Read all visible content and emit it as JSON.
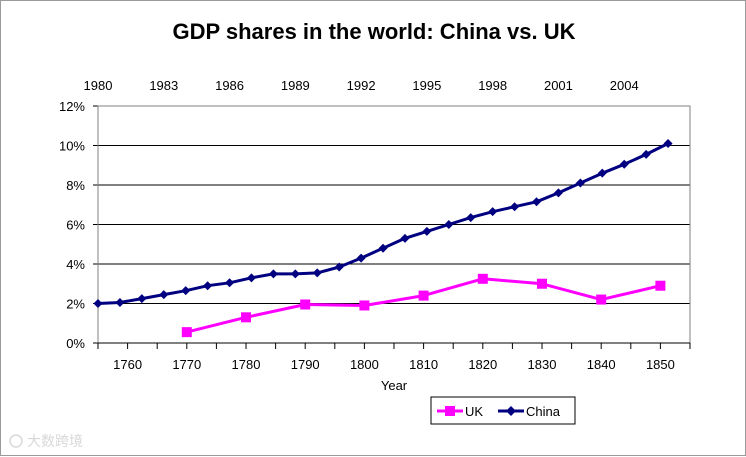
{
  "chart_data": {
    "type": "line",
    "title": "GDP shares in the world: China vs. UK",
    "xlabel": "Year",
    "ylabel": "",
    "ylim": [
      0,
      12
    ],
    "y_tick_labels": [
      "0%",
      "2%",
      "4%",
      "6%",
      "8%",
      "10%",
      "12%"
    ],
    "y_ticks": [
      0,
      2,
      4,
      6,
      8,
      10,
      12
    ],
    "bottom_axis": {
      "range": [
        1755,
        1855
      ],
      "tick_labels": [
        "1760",
        "1770",
        "1780",
        "1790",
        "1800",
        "1810",
        "1820",
        "1830",
        "1840",
        "1850"
      ],
      "ticks": [
        1760,
        1770,
        1780,
        1790,
        1800,
        1810,
        1820,
        1830,
        1840,
        1850
      ]
    },
    "top_axis": {
      "range": [
        1980,
        2007
      ],
      "tick_labels": [
        "1980",
        "1983",
        "1986",
        "1989",
        "1992",
        "1995",
        "1998",
        "2001",
        "2004"
      ],
      "ticks": [
        1980,
        1983,
        1986,
        1989,
        1992,
        1995,
        1998,
        2001,
        2004
      ]
    },
    "grid": true,
    "legend_position": "bottom-right",
    "series": [
      {
        "name": "UK",
        "axis": "bottom",
        "color": "#ff00ff",
        "marker": "square",
        "x": [
          1770,
          1780,
          1790,
          1800,
          1810,
          1820,
          1830,
          1840,
          1850
        ],
        "values": [
          0.55,
          1.3,
          1.95,
          1.9,
          2.4,
          3.25,
          3.0,
          2.2,
          2.9
        ]
      },
      {
        "name": "China",
        "axis": "top",
        "color": "#000080",
        "marker": "diamond",
        "x": [
          1980,
          1981,
          1982,
          1983,
          1984,
          1985,
          1986,
          1987,
          1988,
          1989,
          1990,
          1991,
          1992,
          1993,
          1994,
          1995,
          1996,
          1997,
          1998,
          1999,
          2000,
          2001,
          2002,
          2003,
          2004,
          2005,
          2006
        ],
        "values": [
          2.0,
          2.05,
          2.25,
          2.45,
          2.65,
          2.9,
          3.05,
          3.3,
          3.5,
          3.5,
          3.55,
          3.85,
          4.3,
          4.8,
          5.3,
          5.65,
          6.0,
          6.35,
          6.65,
          6.9,
          7.15,
          7.6,
          8.1,
          8.6,
          9.05,
          9.55,
          10.1
        ]
      }
    ]
  },
  "watermark": "大数跨境"
}
